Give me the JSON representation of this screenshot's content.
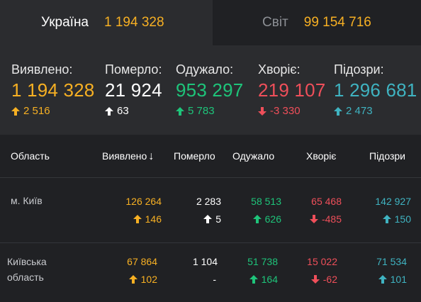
{
  "tabs": {
    "ukraine": {
      "label": "Україна",
      "value": "1 194 328"
    },
    "world": {
      "label": "Світ",
      "value": "99 154 716"
    }
  },
  "summary": {
    "detected": {
      "label": "Виявлено:",
      "value": "1 194 328",
      "delta": "2 516"
    },
    "died": {
      "label": "Померло:",
      "value": "21 924",
      "delta": "63"
    },
    "recovered": {
      "label": "Одужало:",
      "value": "953 297",
      "delta": "5 783"
    },
    "sick": {
      "label": "Хворіє:",
      "value": "219 107",
      "delta": "-3 330"
    },
    "suspected": {
      "label": "Підозри:",
      "value": "1 296 681",
      "delta": "2 473"
    }
  },
  "table": {
    "headers": {
      "region": "Область",
      "detected": "Виявлено",
      "sort_indicator": "↓",
      "died": "Померло",
      "recovered": "Одужало",
      "sick": "Хворіє",
      "suspected": "Підозри"
    },
    "rows": [
      {
        "name_line1": "м. Київ",
        "name_line2": "",
        "detected": "126 264",
        "detected_delta": "146",
        "died": "2 283",
        "died_delta": "5",
        "recovered": "58 513",
        "recovered_delta": "626",
        "sick": "65 468",
        "sick_delta": "-485",
        "suspected": "142 927",
        "suspected_delta": "150"
      },
      {
        "name_line1": "Київська",
        "name_line2": "область",
        "detected": "67 864",
        "detected_delta": "102",
        "died": "1 104",
        "died_delta": "-",
        "recovered": "51 738",
        "recovered_delta": "164",
        "sick": "15 022",
        "sick_delta": "-62",
        "suspected": "71 534",
        "suspected_delta": "101"
      }
    ]
  },
  "colors": {
    "detected": "#f7b023",
    "died": "#ffffff",
    "recovered": "#1ec47a",
    "sick": "#ef4f5a",
    "suspected": "#3fb3c1"
  },
  "icons": {
    "up": "arrow-up-icon",
    "down": "arrow-down-icon"
  }
}
